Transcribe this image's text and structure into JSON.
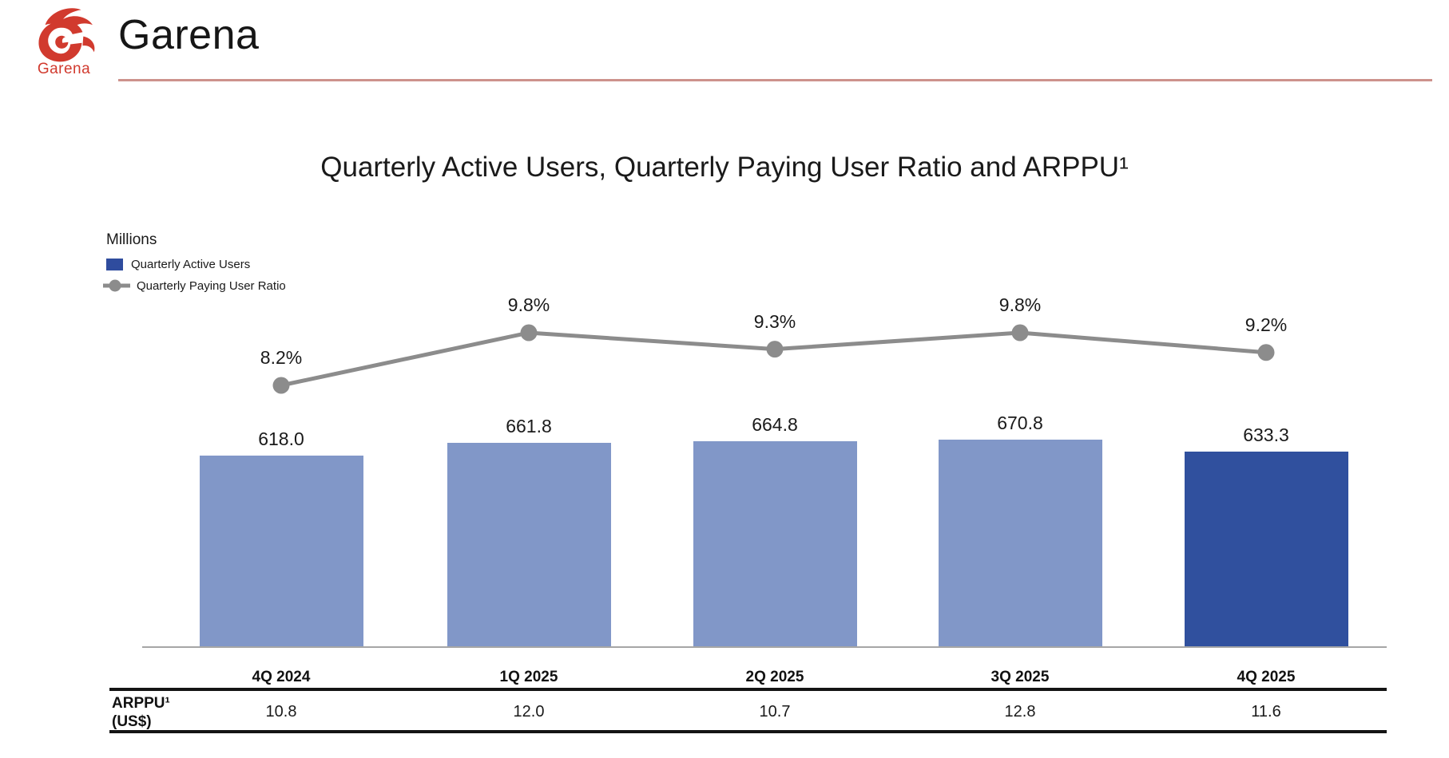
{
  "header": {
    "logo_wordmark": "Garena",
    "page_title": "Garena"
  },
  "chart": {
    "title": "Quarterly Active Users, Quarterly Paying User Ratio and ARPPU¹",
    "units_label": "Millions",
    "legend": [
      {
        "label": "Quarterly Active Users"
      },
      {
        "label": "Quarterly Paying User Ratio"
      }
    ]
  },
  "chart_data": {
    "type": "bar+line",
    "categories": [
      "4Q 2024",
      "1Q 2025",
      "2Q 2025",
      "3Q 2025",
      "4Q 2025"
    ],
    "series": [
      {
        "name": "Quarterly Active Users",
        "type": "bar",
        "unit": "millions",
        "values": [
          618.0,
          661.8,
          664.8,
          670.8,
          633.3
        ],
        "labels": [
          "618.0",
          "661.8",
          "664.8",
          "670.8",
          "633.3"
        ]
      },
      {
        "name": "Quarterly Paying User Ratio",
        "type": "line",
        "unit": "percent",
        "values": [
          8.2,
          9.8,
          9.3,
          9.8,
          9.2
        ],
        "labels": [
          "8.2%",
          "9.8%",
          "9.3%",
          "9.8%",
          "9.2%"
        ]
      },
      {
        "name": "ARPPU (US$)",
        "type": "table",
        "unit": "US$",
        "values": [
          10.8,
          12.0,
          10.7,
          12.8,
          11.6
        ],
        "labels": [
          "10.8",
          "12.0",
          "10.7",
          "12.8",
          "11.6"
        ]
      }
    ],
    "highlight_index": 4,
    "legend_position": "top-left",
    "grid": false,
    "colors": {
      "bar": "#8197c8",
      "bar_highlight": "#30509e",
      "line": "#8c8c8c",
      "axis": "#a6a6a6",
      "accent_red": "#d13a2e",
      "header_rule": "#cd928c"
    }
  },
  "table": {
    "row_label_line1": "ARPPU¹",
    "row_label_line2": "(US$)"
  }
}
